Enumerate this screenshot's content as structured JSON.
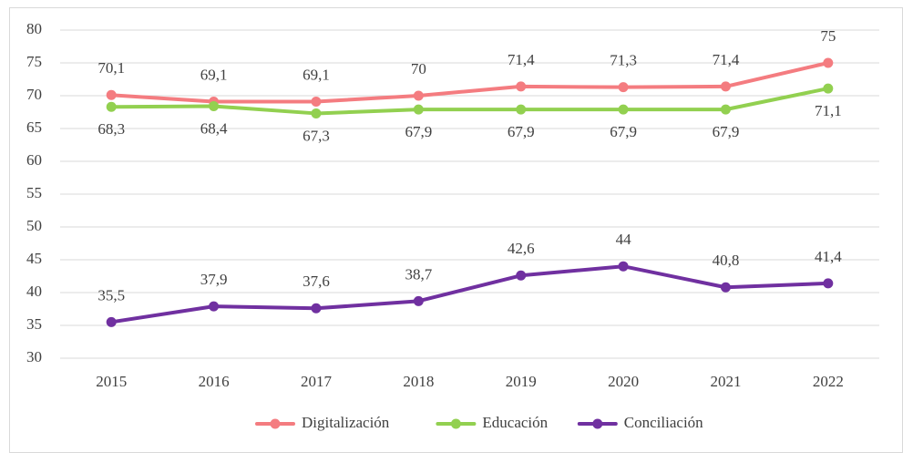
{
  "chart_data": {
    "type": "line",
    "categories": [
      "2015",
      "2016",
      "2017",
      "2018",
      "2019",
      "2020",
      "2021",
      "2022"
    ],
    "series": [
      {
        "name": "Digitalización",
        "color": "#f47c80",
        "label_position": "above",
        "values": [
          70.1,
          69.1,
          69.1,
          70,
          71.4,
          71.3,
          71.4,
          75
        ],
        "value_labels": [
          "70,1",
          "69,1",
          "69,1",
          "70",
          "71,4",
          "71,3",
          "71,4",
          "75"
        ]
      },
      {
        "name": "Educación",
        "color": "#92d050",
        "label_position": "below",
        "values": [
          68.3,
          68.4,
          67.3,
          67.9,
          67.9,
          67.9,
          67.9,
          71.1
        ],
        "value_labels": [
          "68,3",
          "68,4",
          "67,3",
          "67,9",
          "67,9",
          "67,9",
          "67,9",
          "71,1"
        ]
      },
      {
        "name": "Conciliación",
        "color": "#7030a0",
        "label_position": "above",
        "values": [
          35.5,
          37.9,
          37.6,
          38.7,
          42.6,
          44,
          40.8,
          41.4
        ],
        "value_labels": [
          "35,5",
          "37,9",
          "37,6",
          "38,7",
          "42,6",
          "44",
          "40,8",
          "41,4"
        ]
      }
    ],
    "ylim": [
      30,
      80
    ],
    "yticks": [
      30,
      35,
      40,
      45,
      50,
      55,
      60,
      65,
      70,
      75,
      80
    ],
    "grid": true,
    "legend": "bottom"
  }
}
